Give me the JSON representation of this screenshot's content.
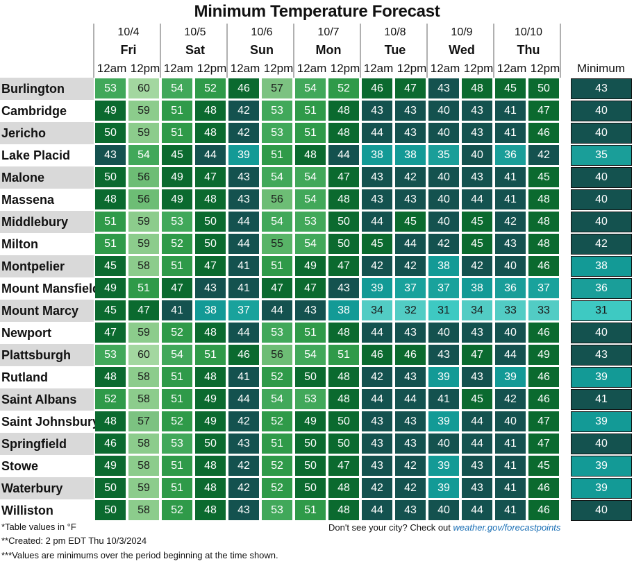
{
  "title": "Minimum Temperature Forecast",
  "days": [
    {
      "date": "10/4",
      "day": "Fri"
    },
    {
      "date": "10/5",
      "day": "Sat"
    },
    {
      "date": "10/6",
      "day": "Sun"
    },
    {
      "date": "10/7",
      "day": "Mon"
    },
    {
      "date": "10/8",
      "day": "Tue"
    },
    {
      "date": "10/9",
      "day": "Wed"
    },
    {
      "date": "10/10",
      "day": "Thu"
    }
  ],
  "periods": [
    "12am",
    "12pm"
  ],
  "minimum_header": "Minimum",
  "chart_data": {
    "type": "table",
    "title": "Minimum Temperature Forecast",
    "unit": "°F",
    "columns": [
      "10/4 Fri 12am",
      "10/4 Fri 12pm",
      "10/5 Sat 12am",
      "10/5 Sat 12pm",
      "10/6 Sun 12am",
      "10/6 Sun 12pm",
      "10/7 Mon 12am",
      "10/7 Mon 12pm",
      "10/8 Tue 12am",
      "10/8 Tue 12pm",
      "10/9 Wed 12am",
      "10/9 Wed 12pm",
      "10/10 Thu 12am",
      "10/10 Thu 12pm"
    ],
    "rows": [
      {
        "city": "Burlington",
        "values": [
          53,
          60,
          54,
          52,
          46,
          57,
          54,
          52,
          46,
          47,
          43,
          48,
          45,
          50
        ],
        "minimum": 43
      },
      {
        "city": "Cambridge",
        "values": [
          49,
          59,
          51,
          48,
          42,
          53,
          51,
          48,
          43,
          43,
          40,
          43,
          41,
          47
        ],
        "minimum": 40
      },
      {
        "city": "Jericho",
        "values": [
          50,
          59,
          51,
          48,
          42,
          53,
          51,
          48,
          44,
          43,
          40,
          43,
          41,
          46
        ],
        "minimum": 40
      },
      {
        "city": "Lake Placid",
        "values": [
          43,
          54,
          45,
          44,
          39,
          51,
          48,
          44,
          38,
          38,
          35,
          40,
          36,
          42
        ],
        "minimum": 35
      },
      {
        "city": "Malone",
        "values": [
          50,
          56,
          49,
          47,
          43,
          54,
          54,
          47,
          43,
          42,
          40,
          43,
          41,
          45
        ],
        "minimum": 40
      },
      {
        "city": "Massena",
        "values": [
          48,
          56,
          49,
          48,
          43,
          56,
          54,
          48,
          43,
          43,
          40,
          44,
          41,
          48
        ],
        "minimum": 40
      },
      {
        "city": "Middlebury",
        "values": [
          51,
          59,
          53,
          50,
          44,
          54,
          53,
          50,
          44,
          45,
          40,
          45,
          42,
          48
        ],
        "minimum": 40
      },
      {
        "city": "Milton",
        "values": [
          51,
          59,
          52,
          50,
          44,
          55,
          54,
          50,
          45,
          44,
          42,
          45,
          43,
          48
        ],
        "minimum": 42
      },
      {
        "city": "Montpelier",
        "values": [
          45,
          58,
          51,
          47,
          41,
          51,
          49,
          47,
          42,
          42,
          38,
          42,
          40,
          46
        ],
        "minimum": 38
      },
      {
        "city": "Mount Mansfield",
        "values": [
          49,
          51,
          47,
          43,
          41,
          47,
          47,
          43,
          39,
          37,
          37,
          38,
          36,
          37
        ],
        "minimum": 36
      },
      {
        "city": "Mount Marcy",
        "values": [
          45,
          47,
          41,
          38,
          37,
          44,
          43,
          38,
          34,
          32,
          31,
          34,
          33,
          33
        ],
        "minimum": 31
      },
      {
        "city": "Newport",
        "values": [
          47,
          59,
          52,
          48,
          44,
          53,
          51,
          48,
          44,
          43,
          40,
          43,
          40,
          46
        ],
        "minimum": 40
      },
      {
        "city": "Plattsburgh",
        "values": [
          53,
          60,
          54,
          51,
          46,
          56,
          54,
          51,
          46,
          46,
          43,
          47,
          44,
          49
        ],
        "minimum": 43
      },
      {
        "city": "Rutland",
        "values": [
          48,
          58,
          51,
          48,
          41,
          52,
          50,
          48,
          42,
          43,
          39,
          43,
          39,
          46
        ],
        "minimum": 39
      },
      {
        "city": "Saint Albans",
        "values": [
          52,
          58,
          51,
          49,
          44,
          54,
          53,
          48,
          44,
          44,
          41,
          45,
          42,
          46
        ],
        "minimum": 41
      },
      {
        "city": "Saint Johnsbury",
        "values": [
          48,
          57,
          52,
          49,
          42,
          52,
          49,
          50,
          43,
          43,
          39,
          44,
          40,
          47
        ],
        "minimum": 39
      },
      {
        "city": "Springfield",
        "values": [
          46,
          58,
          53,
          50,
          43,
          51,
          50,
          50,
          43,
          43,
          40,
          44,
          41,
          47
        ],
        "minimum": 40
      },
      {
        "city": "Stowe",
        "values": [
          49,
          58,
          51,
          48,
          42,
          52,
          50,
          47,
          43,
          42,
          39,
          43,
          41,
          45
        ],
        "minimum": 39
      },
      {
        "city": "Waterbury",
        "values": [
          50,
          59,
          51,
          48,
          42,
          52,
          50,
          48,
          42,
          42,
          39,
          43,
          41,
          46
        ],
        "minimum": 39
      },
      {
        "city": "Williston",
        "values": [
          50,
          58,
          52,
          48,
          43,
          53,
          51,
          48,
          44,
          43,
          40,
          44,
          41,
          46
        ],
        "minimum": 40
      }
    ]
  },
  "notes": [
    "*Table values in °F",
    "**Created: 2 pm EDT Thu 10/3/2024",
    "***Values are minimums over the period beginning at the time shown."
  ],
  "cta_text": "Don't see your city? Check out",
  "cta_link": "weather.gov/forecastpoints",
  "colors": {
    "row_stripe": "#d9d9d9",
    "min_border": "#111111"
  }
}
